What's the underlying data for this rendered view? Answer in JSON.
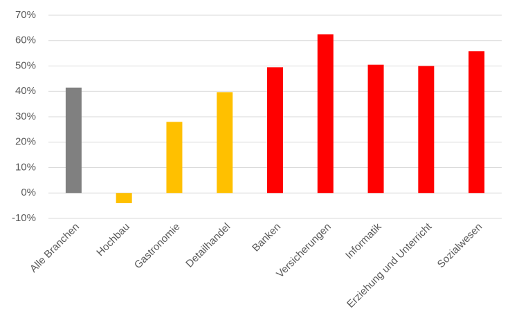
{
  "chart_data": {
    "type": "bar",
    "categories": [
      "Alle Branchen",
      "Hochbau",
      "Gastronomie",
      "Detailhandel",
      "Banken",
      "Versicherungen",
      "Informatik",
      "Erziehung und Unterricht",
      "Sozialwesen"
    ],
    "values": [
      41.5,
      -4,
      28,
      39.7,
      49.5,
      62.5,
      50.5,
      50,
      55.8
    ],
    "colors": [
      "#808080",
      "#ffc000",
      "#ffc000",
      "#ffc000",
      "#ff0000",
      "#ff0000",
      "#ff0000",
      "#ff0000",
      "#ff0000"
    ],
    "ylim": [
      -10,
      70
    ],
    "yticks": [
      {
        "value": -10,
        "label": "-10%"
      },
      {
        "value": 0,
        "label": "0%"
      },
      {
        "value": 10,
        "label": "10%"
      },
      {
        "value": 20,
        "label": "20%"
      },
      {
        "value": 30,
        "label": "30%"
      },
      {
        "value": 40,
        "label": "40%"
      },
      {
        "value": 50,
        "label": "50%"
      },
      {
        "value": 60,
        "label": "60%"
      },
      {
        "value": 70,
        "label": "70%"
      }
    ],
    "grid": true
  }
}
